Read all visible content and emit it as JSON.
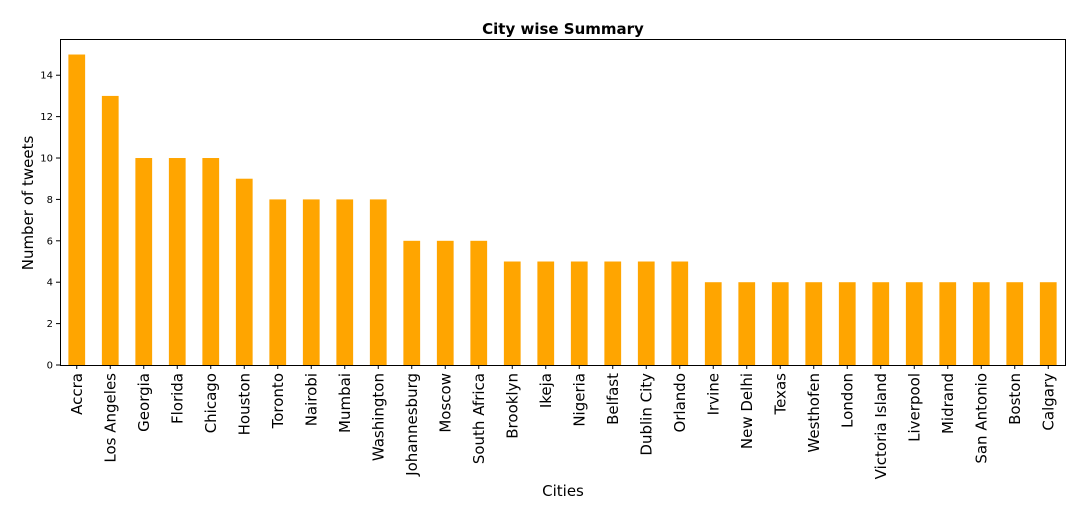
{
  "chart_data": {
    "type": "bar",
    "title": "City wise Summary",
    "xlabel": "Cities",
    "ylabel": "Number of tweets",
    "categories": [
      "Accra",
      "Los Angeles",
      "Georgia",
      "Florida",
      "Chicago",
      "Houston",
      "Toronto",
      "Nairobi",
      "Mumbai",
      "Washington",
      "Johannesburg",
      "Moscow",
      "South Africa",
      "Brooklyn",
      "Ikeja",
      "Nigeria",
      "Belfast",
      "Dublin City",
      "Orlando",
      "Irvine",
      "New Delhi",
      "Texas",
      "Westhofen",
      "London",
      "Victoria Island",
      "Liverpool",
      "Midrand",
      "San Antonio",
      "Boston",
      "Calgary"
    ],
    "values": [
      15,
      13,
      10,
      10,
      10,
      9,
      8,
      8,
      8,
      8,
      6,
      6,
      6,
      5,
      5,
      5,
      5,
      5,
      5,
      4,
      4,
      4,
      4,
      4,
      4,
      4,
      4,
      4,
      4,
      4
    ],
    "ylim": [
      0,
      15.75
    ],
    "yticks": [
      0,
      2,
      4,
      6,
      8,
      10,
      12,
      14
    ],
    "bar_color": "#ffa500",
    "grid": false,
    "legend": false
  }
}
